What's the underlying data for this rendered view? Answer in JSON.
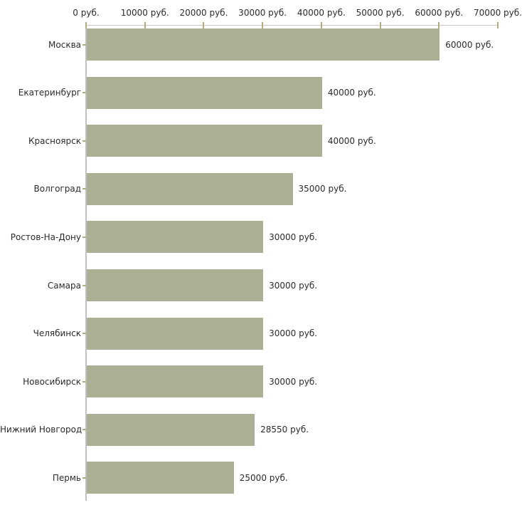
{
  "colors": {
    "bar": "#abb095",
    "axis_line": "#c6c6c6",
    "axis_line_vertical": "#c1c1c1",
    "tick": "#b3ab7d",
    "text": "#2b2b2b",
    "background": "#ffffff"
  },
  "chart_data": {
    "type": "bar",
    "orientation": "horizontal",
    "categories": [
      "Москва",
      "Екатеринбург",
      "Красноярск",
      "Волгоград",
      "Ростов-На-Дону",
      "Самара",
      "Челябинск",
      "Новосибирск",
      "Нижний Новгород",
      "Пермь"
    ],
    "values": [
      60000,
      40000,
      40000,
      35000,
      30000,
      30000,
      30000,
      30000,
      28550,
      25000
    ],
    "value_labels": [
      "60000 руб.",
      "40000 руб.",
      "40000 руб.",
      "35000 руб.",
      "30000 руб.",
      "30000 руб.",
      "30000 руб.",
      "30000 руб.",
      "28550 руб.",
      "25000 руб."
    ],
    "x_ticks": [
      0,
      10000,
      20000,
      30000,
      40000,
      50000,
      60000,
      70000
    ],
    "x_tick_labels": [
      "0 руб.",
      "10000 руб.",
      "20000 руб.",
      "30000 руб.",
      "40000 руб.",
      "50000 руб.",
      "60000 руб.",
      "70000 руб."
    ],
    "xlim": [
      0,
      70000
    ],
    "grid": false,
    "legend": false
  }
}
